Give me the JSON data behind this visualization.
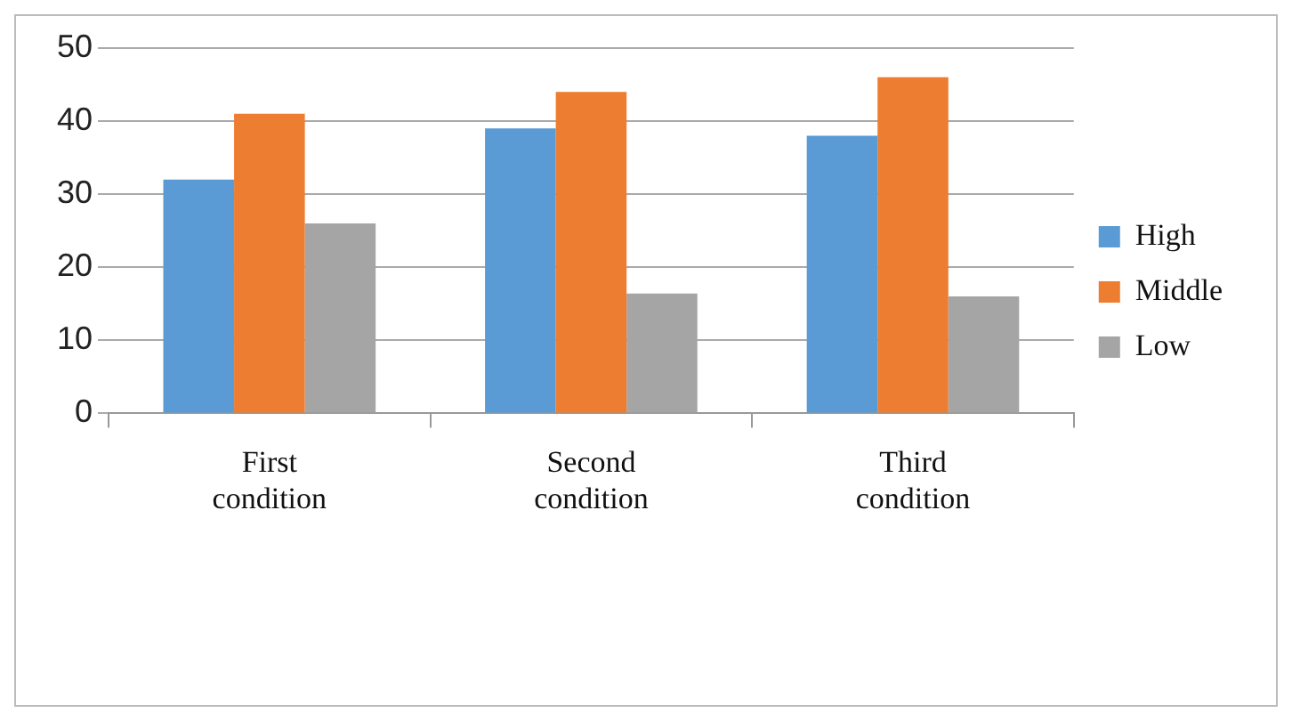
{
  "chart_data": {
    "type": "bar",
    "categories": [
      "First condition",
      "Second condition",
      "Third condition"
    ],
    "series": [
      {
        "name": "High",
        "color": "#5b9bd5",
        "values": [
          32,
          39,
          38
        ]
      },
      {
        "name": "Middle",
        "color": "#ed7d31",
        "values": [
          41,
          44,
          46
        ]
      },
      {
        "name": "Low",
        "color": "#a5a5a5",
        "values": [
          26,
          16.4,
          16
        ]
      }
    ],
    "ylim": [
      0,
      50
    ],
    "yticks": [
      0,
      10,
      20,
      30,
      40,
      50
    ],
    "grid": "y",
    "legend": "right"
  }
}
